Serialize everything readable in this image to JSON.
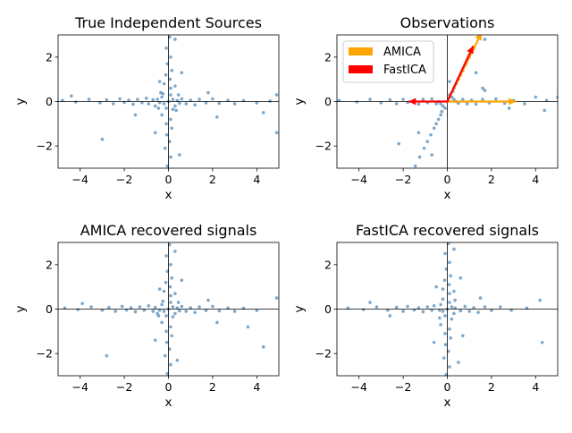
{
  "chart_data": [
    {
      "type": "scatter",
      "title": "True Independent Sources",
      "xlabel": "x",
      "ylabel": "y",
      "xlim": [
        -5,
        5
      ],
      "ylim": [
        -3,
        3
      ],
      "xticks": [
        -4,
        -2,
        0,
        2,
        4
      ],
      "yticks": [
        -2,
        0,
        2
      ],
      "point_color": "#4682b4",
      "points": [
        [
          -4.8,
          0.05
        ],
        [
          -4.2,
          -0.02
        ],
        [
          -3.6,
          0.1
        ],
        [
          -3.1,
          -0.05
        ],
        [
          -2.8,
          0.08
        ],
        [
          -2.5,
          -0.1
        ],
        [
          -2.2,
          0.12
        ],
        [
          -2.0,
          -0.04
        ],
        [
          -1.8,
          0.06
        ],
        [
          -1.6,
          -0.12
        ],
        [
          -1.4,
          0.1
        ],
        [
          -1.2,
          -0.05
        ],
        [
          -1.0,
          0.15
        ],
        [
          -0.9,
          -0.1
        ],
        [
          -0.7,
          0.08
        ],
        [
          -0.6,
          -0.2
        ],
        [
          -0.5,
          0.1
        ],
        [
          0.5,
          -0.08
        ],
        [
          0.6,
          0.12
        ],
        [
          0.8,
          -0.1
        ],
        [
          1.0,
          0.06
        ],
        [
          1.2,
          -0.15
        ],
        [
          1.4,
          0.1
        ],
        [
          1.7,
          -0.06
        ],
        [
          2.0,
          0.12
        ],
        [
          2.3,
          -0.08
        ],
        [
          2.7,
          0.05
        ],
        [
          3.0,
          -0.1
        ],
        [
          3.4,
          0.04
        ],
        [
          4.0,
          -0.06
        ],
        [
          4.6,
          0.02
        ],
        [
          4.9,
          0.3
        ],
        [
          -1.5,
          -0.6
        ],
        [
          1.8,
          0.4
        ],
        [
          2.2,
          -0.7
        ],
        [
          4.3,
          -0.5
        ],
        [
          -4.4,
          0.25
        ],
        [
          -3.0,
          -1.7
        ],
        [
          4.9,
          -1.4
        ],
        [
          0.05,
          2.9
        ],
        [
          -0.1,
          2.4
        ],
        [
          0.1,
          2.0
        ],
        [
          -0.05,
          1.7
        ],
        [
          0.15,
          1.4
        ],
        [
          -0.12,
          1.2
        ],
        [
          0.08,
          1.0
        ],
        [
          -0.2,
          0.8
        ],
        [
          0.1,
          0.6
        ],
        [
          0.3,
          0.7
        ],
        [
          -0.3,
          -0.6
        ],
        [
          0.1,
          -0.8
        ],
        [
          -0.1,
          -1.0
        ],
        [
          0.15,
          -1.2
        ],
        [
          -0.08,
          -1.5
        ],
        [
          0.05,
          -1.8
        ],
        [
          -0.15,
          -2.1
        ],
        [
          0.1,
          -2.5
        ],
        [
          -0.05,
          -2.9
        ],
        [
          0.6,
          1.3
        ],
        [
          -0.6,
          -1.4
        ],
        [
          0.5,
          -2.4
        ],
        [
          0.3,
          2.8
        ],
        [
          -0.4,
          0.9
        ],
        [
          0,
          0
        ],
        [
          0.2,
          0.1
        ],
        [
          -0.2,
          -0.1
        ],
        [
          0.3,
          -0.2
        ],
        [
          -0.3,
          0.2
        ],
        [
          0.1,
          0.3
        ],
        [
          -0.1,
          -0.3
        ],
        [
          0.4,
          0.05
        ],
        [
          -0.4,
          -0.05
        ],
        [
          0.2,
          -0.35
        ],
        [
          -0.25,
          0.35
        ],
        [
          0.45,
          0.3
        ],
        [
          -0.45,
          -0.3
        ],
        [
          0.35,
          -0.4
        ],
        [
          -0.35,
          0.4
        ]
      ]
    },
    {
      "type": "scatter",
      "title": "Observations",
      "xlabel": "x",
      "ylabel": "y",
      "xlim": [
        -5,
        5
      ],
      "ylim": [
        -3,
        3
      ],
      "xticks": [
        -4,
        -2,
        0,
        2,
        4
      ],
      "yticks": [
        -2,
        0,
        2
      ],
      "point_color": "#4682b4",
      "points": [
        [
          -4.9,
          0.05
        ],
        [
          -4.1,
          -0.02
        ],
        [
          -3.5,
          0.1
        ],
        [
          -3.0,
          -0.05
        ],
        [
          -2.6,
          0.08
        ],
        [
          -2.3,
          -0.1
        ],
        [
          -2.0,
          0.1
        ],
        [
          -1.8,
          -0.04
        ],
        [
          -1.5,
          0.06
        ],
        [
          -1.3,
          -0.12
        ],
        [
          -1.1,
          0.1
        ],
        [
          -0.9,
          -0.05
        ],
        [
          -0.7,
          0.12
        ],
        [
          -0.5,
          -0.1
        ],
        [
          0.5,
          -0.08
        ],
        [
          0.7,
          0.1
        ],
        [
          0.9,
          -0.1
        ],
        [
          1.1,
          0.06
        ],
        [
          1.3,
          -0.12
        ],
        [
          1.6,
          0.1
        ],
        [
          1.9,
          -0.06
        ],
        [
          2.2,
          0.12
        ],
        [
          2.6,
          -0.08
        ],
        [
          3.0,
          0.05
        ],
        [
          3.5,
          -0.1
        ],
        [
          4.0,
          0.2
        ],
        [
          4.5,
          0.05
        ],
        [
          5.0,
          0.2
        ],
        [
          1.7,
          0.5
        ],
        [
          2.8,
          -0.3
        ],
        [
          4.4,
          -0.4
        ],
        [
          -2.2,
          -1.9
        ],
        [
          1.45,
          2.9
        ],
        [
          1.2,
          2.4
        ],
        [
          1.0,
          2.0
        ],
        [
          0.85,
          1.7
        ],
        [
          0.7,
          1.4
        ],
        [
          0.6,
          1.2
        ],
        [
          0.5,
          1.0
        ],
        [
          0.4,
          0.8
        ],
        [
          0.3,
          0.6
        ],
        [
          -0.3,
          -0.6
        ],
        [
          -0.4,
          -0.8
        ],
        [
          -0.5,
          -1.0
        ],
        [
          -0.6,
          -1.2
        ],
        [
          -0.75,
          -1.5
        ],
        [
          -0.9,
          -1.8
        ],
        [
          -1.05,
          -2.1
        ],
        [
          -1.25,
          -2.5
        ],
        [
          -1.45,
          -2.9
        ],
        [
          1.3,
          1.3
        ],
        [
          -1.3,
          -1.4
        ],
        [
          -0.7,
          -2.4
        ],
        [
          1.7,
          2.8
        ],
        [
          0.1,
          0.9
        ],
        [
          1.6,
          0.6
        ],
        [
          0,
          0
        ],
        [
          0.2,
          0.2
        ],
        [
          -0.2,
          -0.2
        ],
        [
          0.3,
          0.1
        ],
        [
          -0.3,
          -0.1
        ],
        [
          0.1,
          0.3
        ],
        [
          -0.1,
          -0.3
        ],
        [
          0.4,
          0.0
        ],
        [
          -0.4,
          0.0
        ],
        [
          0.25,
          0.45
        ],
        [
          -0.25,
          -0.45
        ]
      ],
      "arrows": [
        {
          "series": "AMICA",
          "from": [
            0,
            0
          ],
          "to": [
            3.1,
            0
          ]
        },
        {
          "series": "AMICA",
          "from": [
            0,
            0
          ],
          "to": [
            1.55,
            3.1
          ]
        },
        {
          "series": "FastICA",
          "from": [
            0,
            0
          ],
          "to": [
            -1.75,
            0
          ]
        },
        {
          "series": "FastICA",
          "from": [
            0,
            0
          ],
          "to": [
            1.17,
            2.5
          ]
        }
      ],
      "legend": {
        "position": "upper-left",
        "entries": [
          {
            "name": "AMICA",
            "color": "#ffa500"
          },
          {
            "name": "FastICA",
            "color": "#ff0000"
          }
        ]
      }
    },
    {
      "type": "scatter",
      "title": "AMICA recovered signals",
      "xlabel": "x",
      "ylabel": "y",
      "xlim": [
        -5,
        5
      ],
      "ylim": [
        -3,
        3
      ],
      "xticks": [
        -4,
        -2,
        0,
        2,
        4
      ],
      "yticks": [
        -2,
        0,
        2
      ],
      "point_color": "#4682b4",
      "points": [
        [
          -4.7,
          0.05
        ],
        [
          -4.1,
          -0.02
        ],
        [
          -3.5,
          0.1
        ],
        [
          -3.0,
          -0.05
        ],
        [
          -2.7,
          0.08
        ],
        [
          -2.4,
          -0.1
        ],
        [
          -2.1,
          0.12
        ],
        [
          -1.9,
          -0.04
        ],
        [
          -1.7,
          0.06
        ],
        [
          -1.5,
          -0.12
        ],
        [
          -1.3,
          0.1
        ],
        [
          -1.1,
          -0.05
        ],
        [
          -0.9,
          0.15
        ],
        [
          -0.7,
          -0.1
        ],
        [
          -0.6,
          0.08
        ],
        [
          -0.5,
          -0.2
        ],
        [
          0.5,
          -0.08
        ],
        [
          0.6,
          0.12
        ],
        [
          0.8,
          -0.1
        ],
        [
          1.0,
          0.06
        ],
        [
          1.2,
          -0.15
        ],
        [
          1.4,
          0.1
        ],
        [
          1.7,
          -0.06
        ],
        [
          2.0,
          0.12
        ],
        [
          2.3,
          -0.08
        ],
        [
          2.7,
          0.05
        ],
        [
          3.0,
          -0.1
        ],
        [
          3.4,
          0.04
        ],
        [
          4.0,
          -0.06
        ],
        [
          4.9,
          0.5
        ],
        [
          -2.8,
          -2.1
        ],
        [
          1.8,
          0.4
        ],
        [
          2.2,
          -0.6
        ],
        [
          4.3,
          -1.7
        ],
        [
          -3.9,
          0.25
        ],
        [
          3.6,
          -0.8
        ],
        [
          0.05,
          2.9
        ],
        [
          -0.1,
          2.4
        ],
        [
          0.1,
          2.0
        ],
        [
          -0.05,
          1.7
        ],
        [
          0.15,
          1.4
        ],
        [
          -0.12,
          1.2
        ],
        [
          0.08,
          1.0
        ],
        [
          -0.2,
          0.8
        ],
        [
          0.1,
          0.6
        ],
        [
          0.3,
          0.7
        ],
        [
          -0.3,
          -0.6
        ],
        [
          0.1,
          -0.8
        ],
        [
          -0.1,
          -1.0
        ],
        [
          0.15,
          -1.2
        ],
        [
          -0.08,
          -1.5
        ],
        [
          0.05,
          -1.8
        ],
        [
          -0.15,
          -2.1
        ],
        [
          0.1,
          -2.5
        ],
        [
          -0.05,
          -2.9
        ],
        [
          0.6,
          1.3
        ],
        [
          -0.6,
          -1.4
        ],
        [
          0.4,
          -2.3
        ],
        [
          0.3,
          2.6
        ],
        [
          -0.4,
          0.9
        ],
        [
          0,
          0
        ],
        [
          0.2,
          0.1
        ],
        [
          -0.2,
          -0.1
        ],
        [
          0.3,
          -0.2
        ],
        [
          -0.3,
          0.2
        ],
        [
          0.1,
          0.3
        ],
        [
          -0.1,
          -0.3
        ],
        [
          0.4,
          0.05
        ],
        [
          -0.4,
          -0.05
        ],
        [
          0.2,
          -0.35
        ],
        [
          -0.25,
          0.35
        ],
        [
          0.45,
          0.3
        ],
        [
          -0.45,
          -0.3
        ]
      ]
    },
    {
      "type": "scatter",
      "title": "FastICA recovered signals",
      "xlabel": "x",
      "ylabel": "y",
      "xlim": [
        -5,
        5
      ],
      "ylim": [
        -3,
        3
      ],
      "xticks": [
        -4,
        -2,
        0,
        2,
        4
      ],
      "yticks": [
        -2,
        0,
        2
      ],
      "point_color": "#4682b4",
      "points": [
        [
          -4.5,
          0.05
        ],
        [
          -3.8,
          -0.02
        ],
        [
          -3.2,
          0.1
        ],
        [
          -2.7,
          -0.05
        ],
        [
          -2.3,
          0.08
        ],
        [
          -2.0,
          -0.1
        ],
        [
          -1.8,
          0.12
        ],
        [
          -1.5,
          -0.04
        ],
        [
          -1.3,
          0.06
        ],
        [
          -1.1,
          -0.12
        ],
        [
          -0.9,
          0.1
        ],
        [
          -0.7,
          -0.05
        ],
        [
          -0.6,
          0.15
        ],
        [
          0.6,
          -0.08
        ],
        [
          0.8,
          0.12
        ],
        [
          1.0,
          -0.1
        ],
        [
          1.2,
          0.06
        ],
        [
          1.4,
          -0.15
        ],
        [
          1.7,
          0.1
        ],
        [
          2.0,
          -0.06
        ],
        [
          2.4,
          0.1
        ],
        [
          2.9,
          -0.05
        ],
        [
          3.6,
          0.05
        ],
        [
          4.2,
          0.4
        ],
        [
          4.3,
          -1.5
        ],
        [
          -2.6,
          -0.3
        ],
        [
          1.5,
          0.5
        ],
        [
          -3.5,
          0.3
        ],
        [
          0.05,
          2.95
        ],
        [
          -0.1,
          2.5
        ],
        [
          0.1,
          2.1
        ],
        [
          -0.05,
          1.8
        ],
        [
          0.15,
          1.5
        ],
        [
          -0.12,
          1.3
        ],
        [
          0.08,
          1.1
        ],
        [
          -0.2,
          0.9
        ],
        [
          0.1,
          0.7
        ],
        [
          0.3,
          0.8
        ],
        [
          -0.3,
          -0.7
        ],
        [
          0.1,
          -0.9
        ],
        [
          -0.1,
          -1.1
        ],
        [
          0.15,
          -1.3
        ],
        [
          -0.08,
          -1.6
        ],
        [
          0.05,
          -1.9
        ],
        [
          -0.15,
          -2.2
        ],
        [
          0.1,
          -2.6
        ],
        [
          -0.05,
          -2.95
        ],
        [
          0.6,
          1.4
        ],
        [
          -0.6,
          -1.5
        ],
        [
          0.5,
          -2.4
        ],
        [
          0.3,
          2.7
        ],
        [
          -0.5,
          1.0
        ],
        [
          0.7,
          -1.2
        ],
        [
          0,
          0
        ],
        [
          0.2,
          0.1
        ],
        [
          -0.2,
          -0.1
        ],
        [
          0.3,
          -0.2
        ],
        [
          -0.3,
          0.2
        ],
        [
          0.1,
          0.3
        ],
        [
          -0.1,
          -0.3
        ],
        [
          0.35,
          0.05
        ],
        [
          -0.35,
          -0.05
        ],
        [
          0.2,
          -0.45
        ],
        [
          -0.2,
          0.45
        ],
        [
          0.35,
          0.4
        ],
        [
          -0.35,
          -0.4
        ]
      ]
    }
  ]
}
